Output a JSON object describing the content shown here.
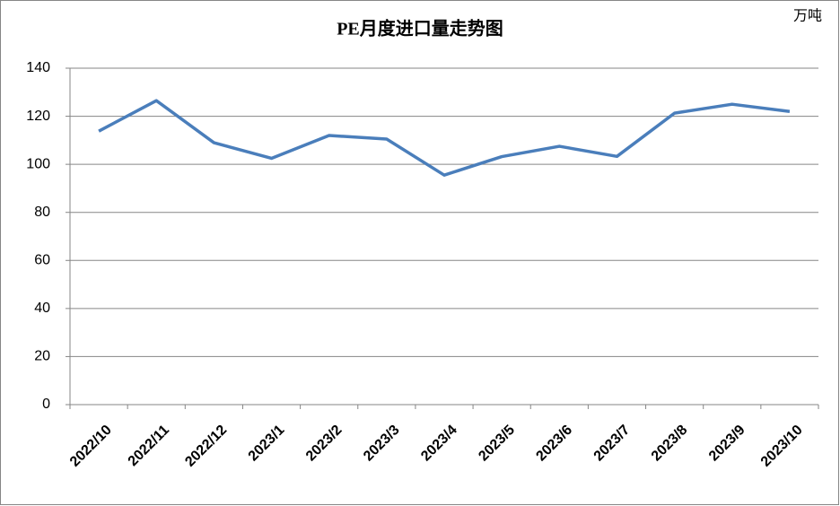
{
  "chart_data": {
    "type": "line",
    "title": "PE月度进口量走势图",
    "unit": "万吨",
    "categories": [
      "2022/10",
      "2022/11",
      "2022/12",
      "2023/1",
      "2023/2",
      "2023/3",
      "2023/4",
      "2023/5",
      "2023/6",
      "2023/7",
      "2023/8",
      "2023/9",
      "2023/10"
    ],
    "series": [
      {
        "name": "PE",
        "color": "#4a7ebb",
        "values": [
          113.8,
          126.5,
          109,
          102.5,
          112,
          110.5,
          95.5,
          103.2,
          107.5,
          103.3,
          121.3,
          125,
          122
        ]
      }
    ],
    "ylim": [
      0,
      140
    ],
    "yticks": [
      0,
      20,
      40,
      60,
      80,
      100,
      120,
      140
    ],
    "grid": true
  }
}
